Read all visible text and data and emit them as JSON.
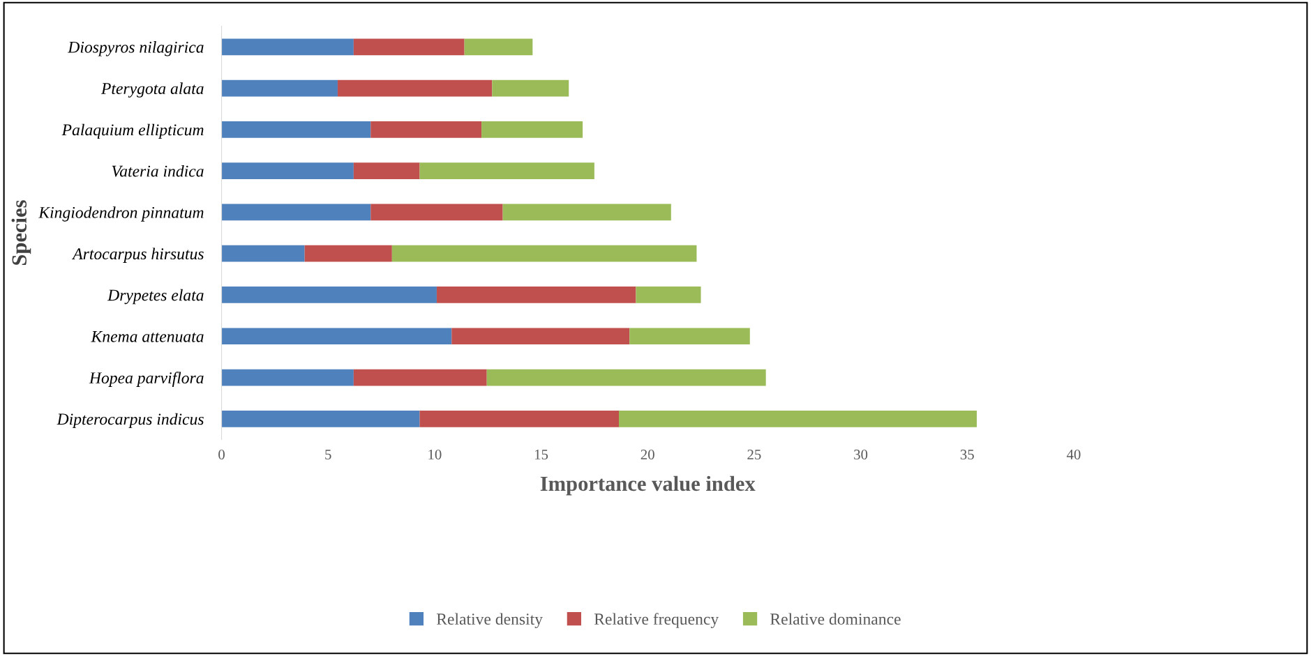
{
  "chart_data": {
    "type": "bar",
    "orientation": "horizontal",
    "stacked": true,
    "xlabel": "Importance value index",
    "ylabel": "Species",
    "categories": [
      "Diospyros nilagirica",
      "Pterygota alata",
      "Palaquium ellipticum",
      "Vateria indica",
      "Kingiodendron pinnatum",
      "Artocarpus hirsutus",
      "Drypetes elata",
      "Knema attenuata",
      "Hopea parviflora",
      "Dipterocarpus indicus"
    ],
    "series": [
      {
        "name": "Relative density",
        "color": "#4f81bd",
        "values": [
          6.2,
          5.45,
          7.0,
          6.2,
          7.0,
          3.9,
          10.1,
          10.8,
          6.2,
          9.3
        ]
      },
      {
        "name": "Relative frequency",
        "color": "#c0504d",
        "values": [
          5.2,
          7.25,
          5.2,
          3.1,
          6.2,
          4.1,
          9.35,
          8.35,
          6.25,
          9.35
        ]
      },
      {
        "name": "Relative dominance",
        "color": "#9bbb59",
        "values": [
          3.2,
          3.6,
          4.75,
          8.2,
          7.9,
          14.3,
          3.05,
          5.65,
          13.1,
          16.8
        ]
      }
    ],
    "xlim": [
      0,
      40
    ],
    "xticks": [
      0,
      5,
      10,
      15,
      20,
      25,
      30,
      35,
      40
    ],
    "grid": false,
    "legend": "bottom"
  }
}
